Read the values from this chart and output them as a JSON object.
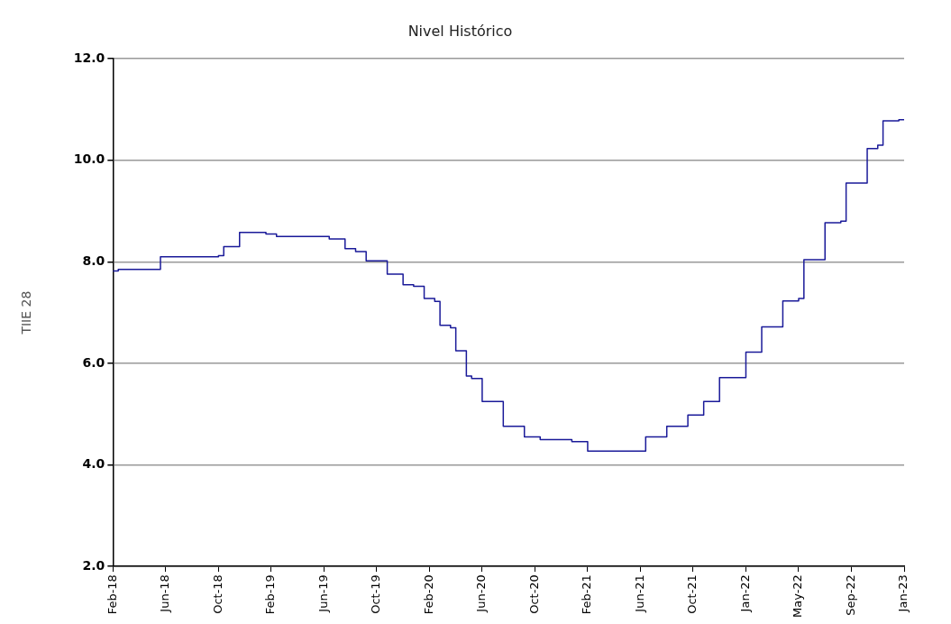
{
  "chart_data": {
    "type": "step",
    "title": "Nivel Histórico",
    "ylabel": "TIIE 28",
    "categories": [
      "Feb-18",
      null,
      null,
      null,
      null,
      null,
      null,
      null,
      null,
      null,
      "Jun-18",
      null,
      null,
      null,
      null,
      null,
      null,
      null,
      null,
      null,
      "Oct-18",
      null,
      null,
      null,
      null,
      null,
      null,
      null,
      null,
      null,
      "Feb-19",
      null,
      null,
      null,
      null,
      null,
      null,
      null,
      null,
      null,
      "Jun-19",
      null,
      null,
      null,
      null,
      null,
      null,
      null,
      null,
      null,
      "Oct-19",
      null,
      null,
      null,
      null,
      null,
      null,
      null,
      null,
      null,
      "Feb-20",
      null,
      null,
      null,
      null,
      null,
      null,
      null,
      null,
      null,
      "Jun-20",
      null,
      null,
      null,
      null,
      null,
      null,
      null,
      null,
      null,
      "Oct-20",
      null,
      null,
      null,
      null,
      null,
      null,
      null,
      null,
      null,
      "Feb-21",
      null,
      null,
      null,
      null,
      null,
      null,
      null,
      null,
      null,
      "Jun-21",
      null,
      null,
      null,
      null,
      null,
      null,
      null,
      null,
      null,
      "Oct-21",
      null,
      null,
      null,
      null,
      null,
      null,
      null,
      null,
      null,
      "Jan-22",
      null,
      null,
      null,
      null,
      null,
      null,
      null,
      null,
      null,
      "May-22",
      null,
      null,
      null,
      null,
      null,
      null,
      null,
      null,
      null,
      "Sep-22",
      null,
      null,
      null,
      null,
      null,
      null,
      null,
      null,
      null,
      "Jan-23"
    ],
    "series": [
      {
        "color": "#1a1a99",
        "values": [
          7.82,
          7.82,
          7.85,
          7.85,
          7.85,
          7.85,
          7.85,
          7.85,
          7.85,
          7.85,
          8.1,
          8.1,
          8.1,
          8.1,
          8.1,
          8.1,
          8.1,
          8.1,
          8.1,
          8.1,
          8.1,
          8.12,
          8.3,
          8.3,
          8.3,
          8.58,
          8.58,
          8.58,
          8.58,
          8.58,
          8.55,
          8.55,
          8.5,
          8.5,
          8.5,
          8.5,
          8.5,
          8.5,
          8.5,
          8.5,
          8.5,
          8.5,
          8.45,
          8.45,
          8.45,
          8.26,
          8.26,
          8.2,
          8.2,
          8.02,
          8.02,
          8.02,
          8.02,
          7.76,
          7.76,
          7.76,
          7.55,
          7.55,
          7.52,
          7.52,
          7.28,
          7.28,
          7.22,
          6.75,
          6.75,
          6.7,
          6.25,
          6.25,
          5.75,
          5.7,
          5.7,
          5.25,
          5.25,
          5.25,
          5.25,
          4.76,
          4.76,
          4.76,
          4.76,
          4.55,
          4.55,
          4.55,
          4.5,
          4.5,
          4.5,
          4.5,
          4.5,
          4.5,
          4.46,
          4.46,
          4.46,
          4.27,
          4.27,
          4.27,
          4.27,
          4.27,
          4.27,
          4.27,
          4.27,
          4.27,
          4.27,
          4.27,
          4.55,
          4.55,
          4.55,
          4.55,
          4.76,
          4.76,
          4.76,
          4.76,
          4.98,
          4.98,
          4.98,
          5.25,
          5.25,
          5.25,
          5.72,
          5.72,
          5.72,
          5.72,
          5.72,
          6.22,
          6.22,
          6.22,
          6.72,
          6.72,
          6.72,
          6.72,
          7.23,
          7.23,
          7.23,
          7.28,
          8.04,
          8.04,
          8.04,
          8.04,
          8.77,
          8.77,
          8.77,
          8.8,
          9.55,
          9.55,
          9.55,
          9.55,
          10.23,
          10.23,
          10.3,
          10.78,
          10.78,
          10.78,
          10.8
        ]
      }
    ],
    "ylim": [
      2,
      12
    ],
    "yticks": [
      {
        "value": 2,
        "label": "2.0"
      },
      {
        "value": 4,
        "label": "4.0"
      },
      {
        "value": 6,
        "label": "6.0"
      },
      {
        "value": 8,
        "label": "8.0"
      },
      {
        "value": 10,
        "label": "10.0"
      },
      {
        "value": 12,
        "label": "12.0"
      }
    ],
    "grid": "y",
    "marker": "none",
    "line_style": "solid",
    "legend": false
  }
}
